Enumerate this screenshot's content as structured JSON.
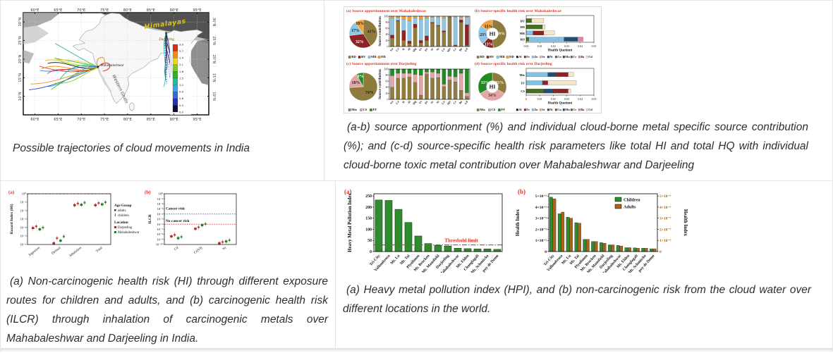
{
  "captions": {
    "map": "Possible trajectories of cloud movements in India",
    "source_apportionment": "(a-b) source apportionment (%) and individual cloud-borne metal specific source contribution (%); and (c-d) source-specific health risk parameters like total HI and total HQ with individual cloud-borne toxic metal contribution over Mahabaleshwar and Darjeeling",
    "health_risk": "(a) Non-carcinogenic health risk (HI) through different exposure routes for children and adults, and (b) carcinogenic health risk (ILCR) through inhalation of carcinogenic metals over Mahabaleshwar and Darjeeling in India.",
    "hpi": "(a) Heavy metal pollution index (HPI), and (b) non-carcinogenic risk from the cloud water over different locations in the world."
  },
  "map": {
    "lon_ticks": [
      "60°E",
      "65°E",
      "70°E",
      "75°E",
      "80°E",
      "85°E",
      "90°E",
      "95°E"
    ],
    "lat_ticks": [
      "30°N",
      "25°N",
      "20°N",
      "15°N",
      "10°N"
    ],
    "labels": {
      "region": "Himalayas",
      "site_east": "Darjeeling",
      "site_west": "Mahabaleshwar",
      "ghats": "Western Ghats"
    },
    "colorbar": {
      "ticks": [
        "3.0",
        "2.7",
        "2.4",
        "2.1",
        "1.8",
        "1.5",
        "1.2",
        "0.9",
        "0.6",
        "0.3",
        "0.0"
      ],
      "colors": [
        "#d92f16",
        "#f28a1a",
        "#f2d018",
        "#7cc922",
        "#2bb424",
        "#25bb97",
        "#37a7e0",
        "#2f6cd4",
        "#2a2fb5",
        "#120d2e"
      ]
    }
  },
  "palette": {
    "khaki": "#8f7b3e",
    "darkred": "#8e2323",
    "lightblue": "#8ec6e6",
    "orange": "#f09f3a",
    "pink": "#e2a6a6",
    "green": "#218a21",
    "title_red": "#e03427",
    "bar_green": "#2e8b2e",
    "bar_brown": "#a9641c"
  },
  "metals_legend": [
    [
      "Al",
      "#1a1a1a"
    ],
    [
      "Fe",
      "#8e2323"
    ],
    [
      "Zn",
      "#7fc3e8"
    ],
    [
      "Sr",
      "#d8c48e"
    ],
    [
      "Ni",
      "#1f4e79"
    ],
    [
      "Cu",
      "#a0402e"
    ],
    [
      "Mn",
      "#2b3f6e"
    ],
    [
      "Cr",
      "#4a6e1f"
    ],
    [
      "Ba",
      "#e085a8"
    ],
    [
      "Cd",
      "#f5e6c8"
    ]
  ],
  "chart_data": [
    {
      "id": "pie_maha",
      "type": "pie",
      "title": "(a)  Source apportionment over Mahabaleshwar",
      "slices": [
        {
          "label": "RD",
          "value": 41,
          "color": "#8f7b3e",
          "tc": "#1a1a1a"
        },
        {
          "label": "BV",
          "value": 32,
          "color": "#8e2323",
          "tc": "#ffffff"
        },
        {
          "label": "MR",
          "value": 17,
          "color": "#8ec6e6",
          "tc": "#1a1a1a"
        },
        {
          "label": "DD",
          "value": 10,
          "color": "#f09f3a",
          "tc": "#1a1a1a"
        }
      ]
    },
    {
      "id": "cols_maha",
      "type": "bar-stacked",
      "ylabel": "Source contribution",
      "ylim": [
        0,
        100
      ],
      "yticks": [
        0,
        20,
        40,
        60,
        80,
        100
      ],
      "categories": [
        "Na",
        "Ca",
        "K",
        "Al",
        "Mg",
        "Fe",
        "Zn",
        "Sr",
        "Ni",
        "Cu",
        "Mn",
        "Cr",
        "Ba",
        "Cd"
      ],
      "series": [
        {
          "name": "RD",
          "color": "#8f7b3e",
          "values": [
            28,
            84,
            20,
            10,
            62,
            12,
            20,
            78,
            68,
            48,
            97,
            3,
            80,
            4
          ]
        },
        {
          "name": "BV",
          "color": "#8e2323",
          "values": [
            10,
            2,
            33,
            8,
            12,
            8,
            15,
            2,
            2,
            4,
            1,
            2,
            8,
            68
          ]
        },
        {
          "name": "MR",
          "color": "#8ec6e6",
          "values": [
            57,
            10,
            37,
            67,
            21,
            70,
            60,
            16,
            27,
            43,
            1,
            92,
            8,
            24
          ]
        },
        {
          "name": "DD",
          "color": "#f09f3a",
          "values": [
            5,
            4,
            10,
            15,
            5,
            10,
            5,
            4,
            3,
            5,
            1,
            3,
            4,
            4
          ]
        }
      ]
    },
    {
      "id": "donut_maha",
      "type": "pie-donut",
      "center": "HI",
      "title": "(b)  Source-specific health risk over Mahabaleshwar",
      "slices": [
        {
          "label": "RD",
          "value": 49,
          "color": "#8f7b3e",
          "tc": "#ffffff"
        },
        {
          "label": "BV",
          "value": 13,
          "color": "#8e2323",
          "tc": "#ffffff"
        },
        {
          "label": "MR",
          "value": 23,
          "color": "#8ec6e6",
          "tc": "#1a1a1a"
        },
        {
          "label": "DD",
          "value": 15,
          "color": "#f09f3a",
          "tc": "#1a1a1a"
        }
      ]
    },
    {
      "id": "hq_maha",
      "type": "bar-hstacked",
      "xlabel": "Health Quotient",
      "xlim": [
        0,
        0.05
      ],
      "xticks": [
        "0.00",
        "0.01",
        "0.02",
        "0.03",
        "0.04",
        "0.05"
      ],
      "rows": [
        {
          "label": "BV",
          "segments": [
            [
              "Cr",
              0.004
            ],
            [
              "Cd",
              0.009
            ]
          ]
        },
        {
          "label": "DD",
          "segments": [
            [
              "Cr",
              0.012
            ],
            [
              "Cd",
              0.002
            ]
          ]
        },
        {
          "label": "MR",
          "segments": [
            [
              "Zn",
              0.005
            ],
            [
              "Fe",
              0.008
            ],
            [
              "Cd",
              0.008
            ]
          ]
        },
        {
          "label": "RD",
          "segments": [
            [
              "Cr",
              0.002
            ],
            [
              "Zn",
              0.026
            ],
            [
              "Ni",
              0.01
            ],
            [
              "Ba",
              0.004
            ]
          ]
        }
      ]
    },
    {
      "id": "pie_darj",
      "type": "pie",
      "title": "(c)  Source apportionment over Darjeeling",
      "slices": [
        {
          "label": "Mix",
          "value": 74,
          "color": "#8f7b3e",
          "tc": "#1a1a1a"
        },
        {
          "label": "CS",
          "value": 18,
          "color": "#e2a6a6",
          "tc": "#1a1a1a"
        },
        {
          "label": "FF",
          "value": 8,
          "color": "#218a21",
          "tc": "#ffffff"
        }
      ]
    },
    {
      "id": "cols_darj",
      "type": "bar-stacked",
      "ylabel": "Source contribution",
      "ylim": [
        0,
        100
      ],
      "yticks": [
        0,
        20,
        40,
        60,
        80,
        100
      ],
      "categories": [
        "Na",
        "Ca",
        "K",
        "Al",
        "Mg",
        "Fe",
        "Zn",
        "Sr",
        "Ni",
        "Cu",
        "Mn",
        "Cr",
        "Ba",
        "Cd"
      ],
      "series": [
        {
          "name": "Mix",
          "color": "#8f7b3e",
          "values": [
            40,
            70,
            70,
            74,
            56,
            14,
            84,
            70,
            72,
            42,
            64,
            58,
            30,
            10
          ]
        },
        {
          "name": "CS",
          "color": "#e2a6a6",
          "values": [
            38,
            16,
            16,
            12,
            26,
            66,
            6,
            20,
            14,
            8,
            12,
            16,
            56,
            12
          ]
        },
        {
          "name": "FF",
          "color": "#218a21",
          "values": [
            22,
            14,
            14,
            14,
            18,
            20,
            10,
            10,
            14,
            50,
            24,
            26,
            14,
            78
          ]
        }
      ]
    },
    {
      "id": "donut_darj",
      "type": "pie-donut",
      "center": "HI",
      "title": "(d)  Source-specific health risk over Darjeeling",
      "slices": [
        {
          "label": "Mix",
          "value": 33,
          "color": "#8f7b3e",
          "tc": "#ffffff"
        },
        {
          "label": "CS",
          "value": 34,
          "color": "#e2a6a6",
          "tc": "#5a2a2a"
        },
        {
          "label": "FF",
          "value": 33,
          "color": "#218a21",
          "tc": "#ffffff"
        }
      ]
    },
    {
      "id": "hq_darj",
      "type": "bar-hstacked",
      "xlabel": "Health Quotient",
      "xlim": [
        0,
        0.05
      ],
      "xticks": [
        "0",
        "0.01",
        "0.02",
        "0.03",
        "0.04",
        "0.05"
      ],
      "rows": [
        {
          "label": "Mix",
          "segments": [
            [
              "Zn",
              0.016
            ],
            [
              "Ni",
              0.006
            ],
            [
              "Fe",
              0.009
            ],
            [
              "Cd",
              0.004
            ]
          ]
        },
        {
          "label": "FF",
          "segments": [
            [
              "Zn",
              0.012
            ],
            [
              "Fe",
              0.004
            ],
            [
              "Cd",
              0.021
            ]
          ]
        },
        {
          "label": "CS",
          "segments": [
            [
              "Cr",
              0.013
            ],
            [
              "Ni",
              0.007
            ],
            [
              "Fe",
              0.011
            ],
            [
              "Cd",
              0.002
            ]
          ]
        }
      ]
    },
    {
      "id": "hi_scatter",
      "type": "scatter-log",
      "panel_label": "(a)",
      "ylabel": "Hazard Index (HI)",
      "yticks": [
        "10⁰",
        "10⁻¹",
        "10⁻²",
        "10⁻³",
        "10⁻⁴",
        "10⁻⁵",
        "10⁻⁶"
      ],
      "categories": [
        "Ingestion",
        "Dermal",
        "Inhalation",
        "Total"
      ],
      "ref_lines": [
        {
          "y_exp": 0,
          "color": "#e03427",
          "dash": "3 2"
        }
      ],
      "legend": {
        "age_title": "Age Group",
        "age_items": [
          "adults",
          "children"
        ],
        "loc_title": "Location",
        "loc_items": [
          {
            "label": "Darjeeling",
            "color": "#b22222"
          },
          {
            "label": "Mahabaleshwar",
            "color": "#1e7a1e"
          }
        ]
      },
      "series": [
        {
          "name": "Darjeeling adults",
          "color": "#b22222",
          "marker": "adult",
          "log_values": [
            -4.05,
            -5.85,
            -1.35,
            -1.35
          ]
        },
        {
          "name": "Darjeeling children",
          "color": "#b22222",
          "marker": "child",
          "log_values": [
            -3.85,
            -5.25,
            -1.15,
            -1.1
          ]
        },
        {
          "name": "Mahabaleshwar adults",
          "color": "#1e7a1e",
          "marker": "adult",
          "log_values": [
            -4.2,
            -5.55,
            -1.3,
            -1.25
          ]
        },
        {
          "name": "Mahabaleshwar children",
          "color": "#1e7a1e",
          "marker": "child",
          "log_values": [
            -4.0,
            -5.05,
            -1.05,
            -1.0
          ]
        }
      ]
    },
    {
      "id": "ilcr_scatter",
      "type": "scatter-log",
      "panel_label": "(b)",
      "ylabel": "ILCR",
      "yticks": [
        "10⁰",
        "10⁻¹",
        "10⁻²",
        "10⁻³",
        "10⁻⁴",
        "10⁻⁵",
        "10⁻⁶",
        "10⁻⁷",
        "10⁻⁸",
        "10⁻⁹",
        "10⁻¹⁰"
      ],
      "categories": [
        "Cd",
        "Cr(VI)",
        "Ni"
      ],
      "annotations": [
        {
          "text": "Cancer risk",
          "y_exp": -3.1
        },
        {
          "text": "No cancer risk",
          "y_exp": -5.55
        }
      ],
      "ref_lines": [
        {
          "y_exp": -4,
          "color": "#5555cc",
          "dash": "1.6 1.6"
        },
        {
          "y_exp": -6,
          "color": "#dd3333",
          "dash": "1.6 1.6"
        }
      ],
      "series": [
        {
          "name": "Darjeeling adults",
          "color": "#b22222",
          "marker": "adult",
          "log_values": [
            -8.4,
            -6.9,
            -9.75
          ]
        },
        {
          "name": "Darjeeling children",
          "color": "#b22222",
          "marker": "child",
          "log_values": [
            -8.1,
            -6.6,
            -9.5
          ]
        },
        {
          "name": "Mahabaleshwar adults",
          "color": "#1e7a1e",
          "marker": "adult",
          "log_values": [
            -8.75,
            -6.2,
            -9.4
          ]
        },
        {
          "name": "Mahabaleshwar children",
          "color": "#1e7a1e",
          "marker": "child",
          "log_values": [
            -8.5,
            -5.95,
            -9.15
          ]
        }
      ]
    },
    {
      "id": "hpi_bars",
      "type": "bar",
      "panel_label": "(a)",
      "ylabel": "Heavy Metal Pollution Index",
      "yticks": [
        0,
        50,
        100,
        150,
        200,
        250
      ],
      "ylim": [
        0,
        260
      ],
      "categories": [
        "Tri-City",
        "Vallombrosa",
        "Mt. Lu",
        "Mt. Tai",
        "Plynlimon",
        "Mt. Brocken",
        "Mt. Mansfield",
        "Darjeeling",
        "Mahabaleshwar",
        "Mt. Elden",
        "Changlagali",
        "Mt. Schmücke",
        "puy de Dome"
      ],
      "values": [
        232,
        230,
        190,
        131,
        70,
        36,
        28,
        25,
        15,
        13,
        12,
        12,
        10
      ],
      "bar_color": "#2e8b2e",
      "threshold": {
        "value": 30,
        "label": "Threshold limit",
        "color": "#e03427"
      }
    },
    {
      "id": "hi_bars",
      "type": "bar-grouped-dualaxis",
      "panel_label": "(b)",
      "ylabel_left": "Health Index",
      "ylabel_right": "Health Index",
      "yticks_left": [
        "0",
        "1×10⁻²",
        "2×10⁻²",
        "3×10⁻²",
        "4×10⁻²",
        "5×10⁻²"
      ],
      "yticks_right": [
        "0",
        "1×10⁻⁴",
        "2×10⁻⁴",
        "3×10⁻⁴",
        "4×10⁻⁴",
        "5×10⁻⁴"
      ],
      "ymax_left": 0.052,
      "ymax_right": 0.00052,
      "categories": [
        "Tri-City",
        "Vallombrosa",
        "Mt. Lu",
        "Mt. Tai",
        "Plynlimon",
        "Mt. Brocken",
        "Mt. Mansfield",
        "Darjeeling",
        "Mahabaleshwar",
        "Mt. Elden",
        "Changlagali",
        "Mt. Schmücke",
        "puy de Dome"
      ],
      "series": [
        {
          "name": "Children",
          "color": "#2e8b2e",
          "axis": "left",
          "values": [
            0.049,
            0.034,
            0.031,
            0.026,
            0.011,
            0.009,
            0.008,
            0.006,
            0.0055,
            0.0035,
            0.0033,
            0.003,
            0.0025
          ]
        },
        {
          "name": "Adults",
          "color": "#a9641c",
          "axis": "right",
          "values": [
            0.000475,
            0.000355,
            0.0003,
            0.000255,
            0.00011,
            9e-05,
            7.5e-05,
            6e-05,
            5e-05,
            3.5e-05,
            3e-05,
            3e-05,
            2.5e-05
          ]
        }
      ]
    }
  ]
}
